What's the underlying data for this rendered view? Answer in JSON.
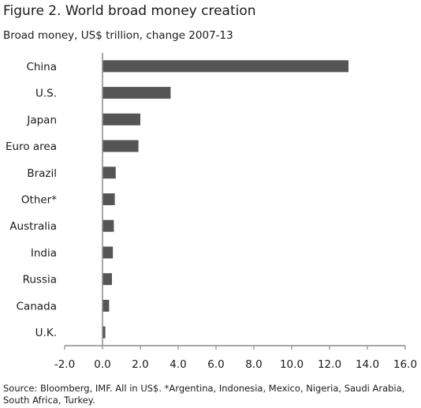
{
  "title": "Figure 2. World broad money creation",
  "subtitle": "Broad money, US$ trillion, change 2007-13",
  "source": "Source:  Bloomberg, IMF. All in US$. *Argentina, Indonesia, Mexico, Nigeria, Saudi Arabia, South Africa, Turkey.",
  "colors": {
    "bar": "#555555",
    "axis": "#8c8c8c"
  },
  "chart_data": {
    "type": "bar",
    "orientation": "horizontal",
    "title": "Figure 2. World broad money creation",
    "subtitle": "Broad money, US$ trillion, change 2007-13",
    "categories": [
      "China",
      "U.S.",
      "Japan",
      "Euro area",
      "Brazil",
      "Other*",
      "Australia",
      "India",
      "Russia",
      "Canada",
      "U.K."
    ],
    "values": [
      13.0,
      3.6,
      2.0,
      1.9,
      0.7,
      0.65,
      0.6,
      0.55,
      0.5,
      0.35,
      0.15
    ],
    "xlim": [
      -2.0,
      16.0
    ],
    "xticks": [
      "-2.0",
      "0.0",
      "2.0",
      "4.0",
      "6.0",
      "8.0",
      "10.0",
      "12.0",
      "14.0",
      "16.0"
    ],
    "xlabel": "",
    "ylabel": "",
    "grid": false,
    "legend": "none"
  }
}
